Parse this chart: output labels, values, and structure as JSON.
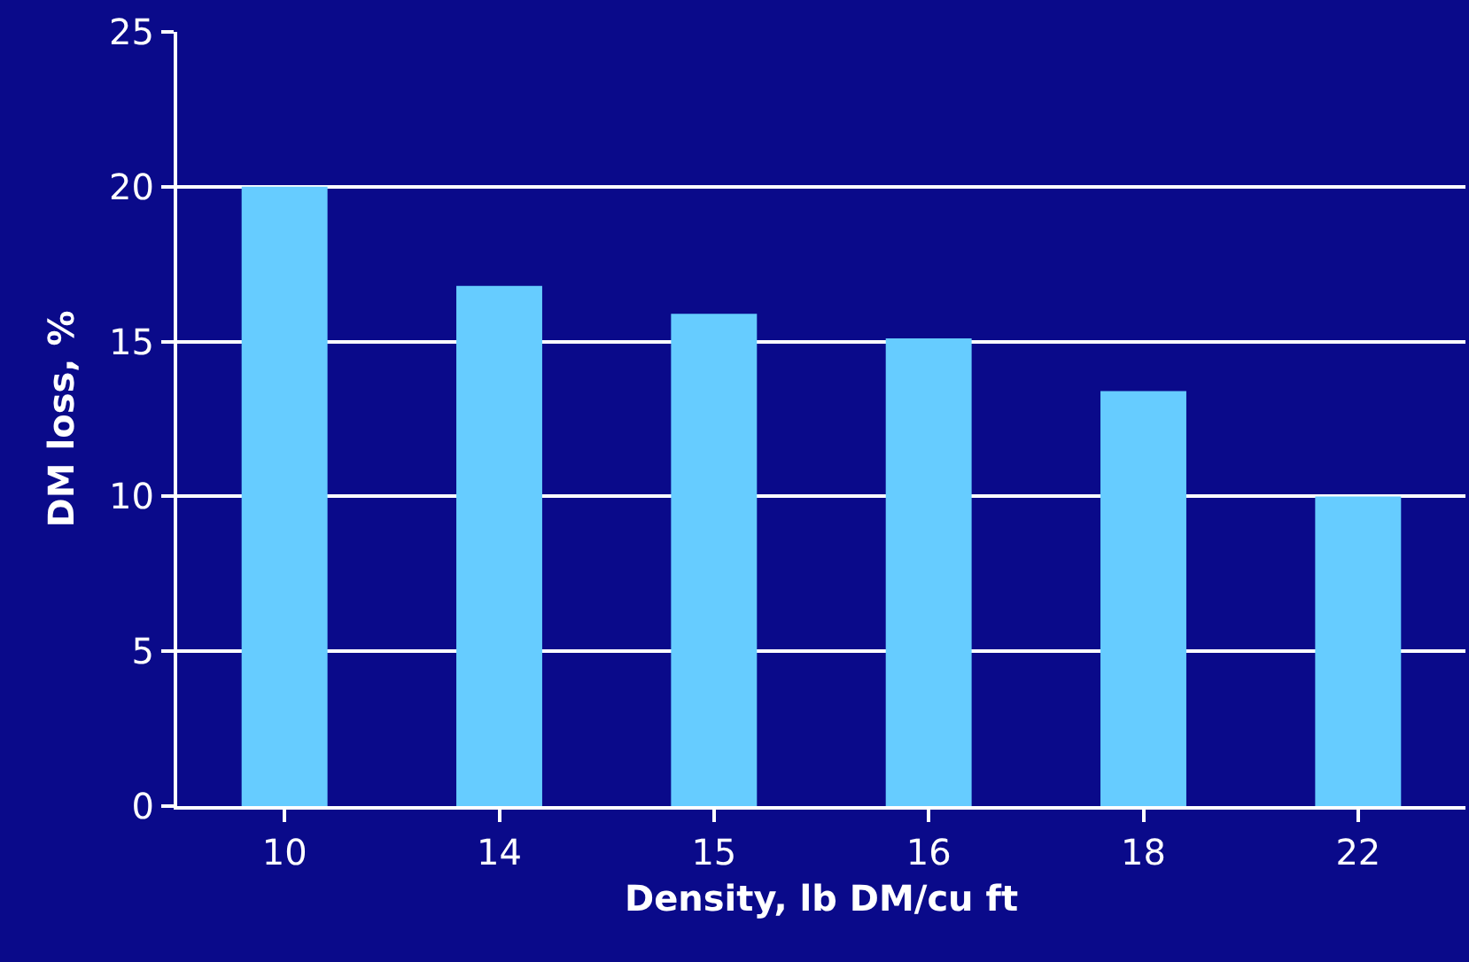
{
  "chart_data": {
    "type": "bar",
    "xlabel": "Density, lb DM/cu ft",
    "ylabel": "DM loss, %",
    "categories": [
      "10",
      "14",
      "15",
      "16",
      "18",
      "22"
    ],
    "values": [
      20,
      16.8,
      15.9,
      15.1,
      13.4,
      10
    ],
    "color": "#66ccff",
    "ylim": [
      0,
      25
    ],
    "yticks": [
      0,
      5,
      10,
      15,
      20,
      25
    ],
    "grid": "y",
    "legend": false
  }
}
